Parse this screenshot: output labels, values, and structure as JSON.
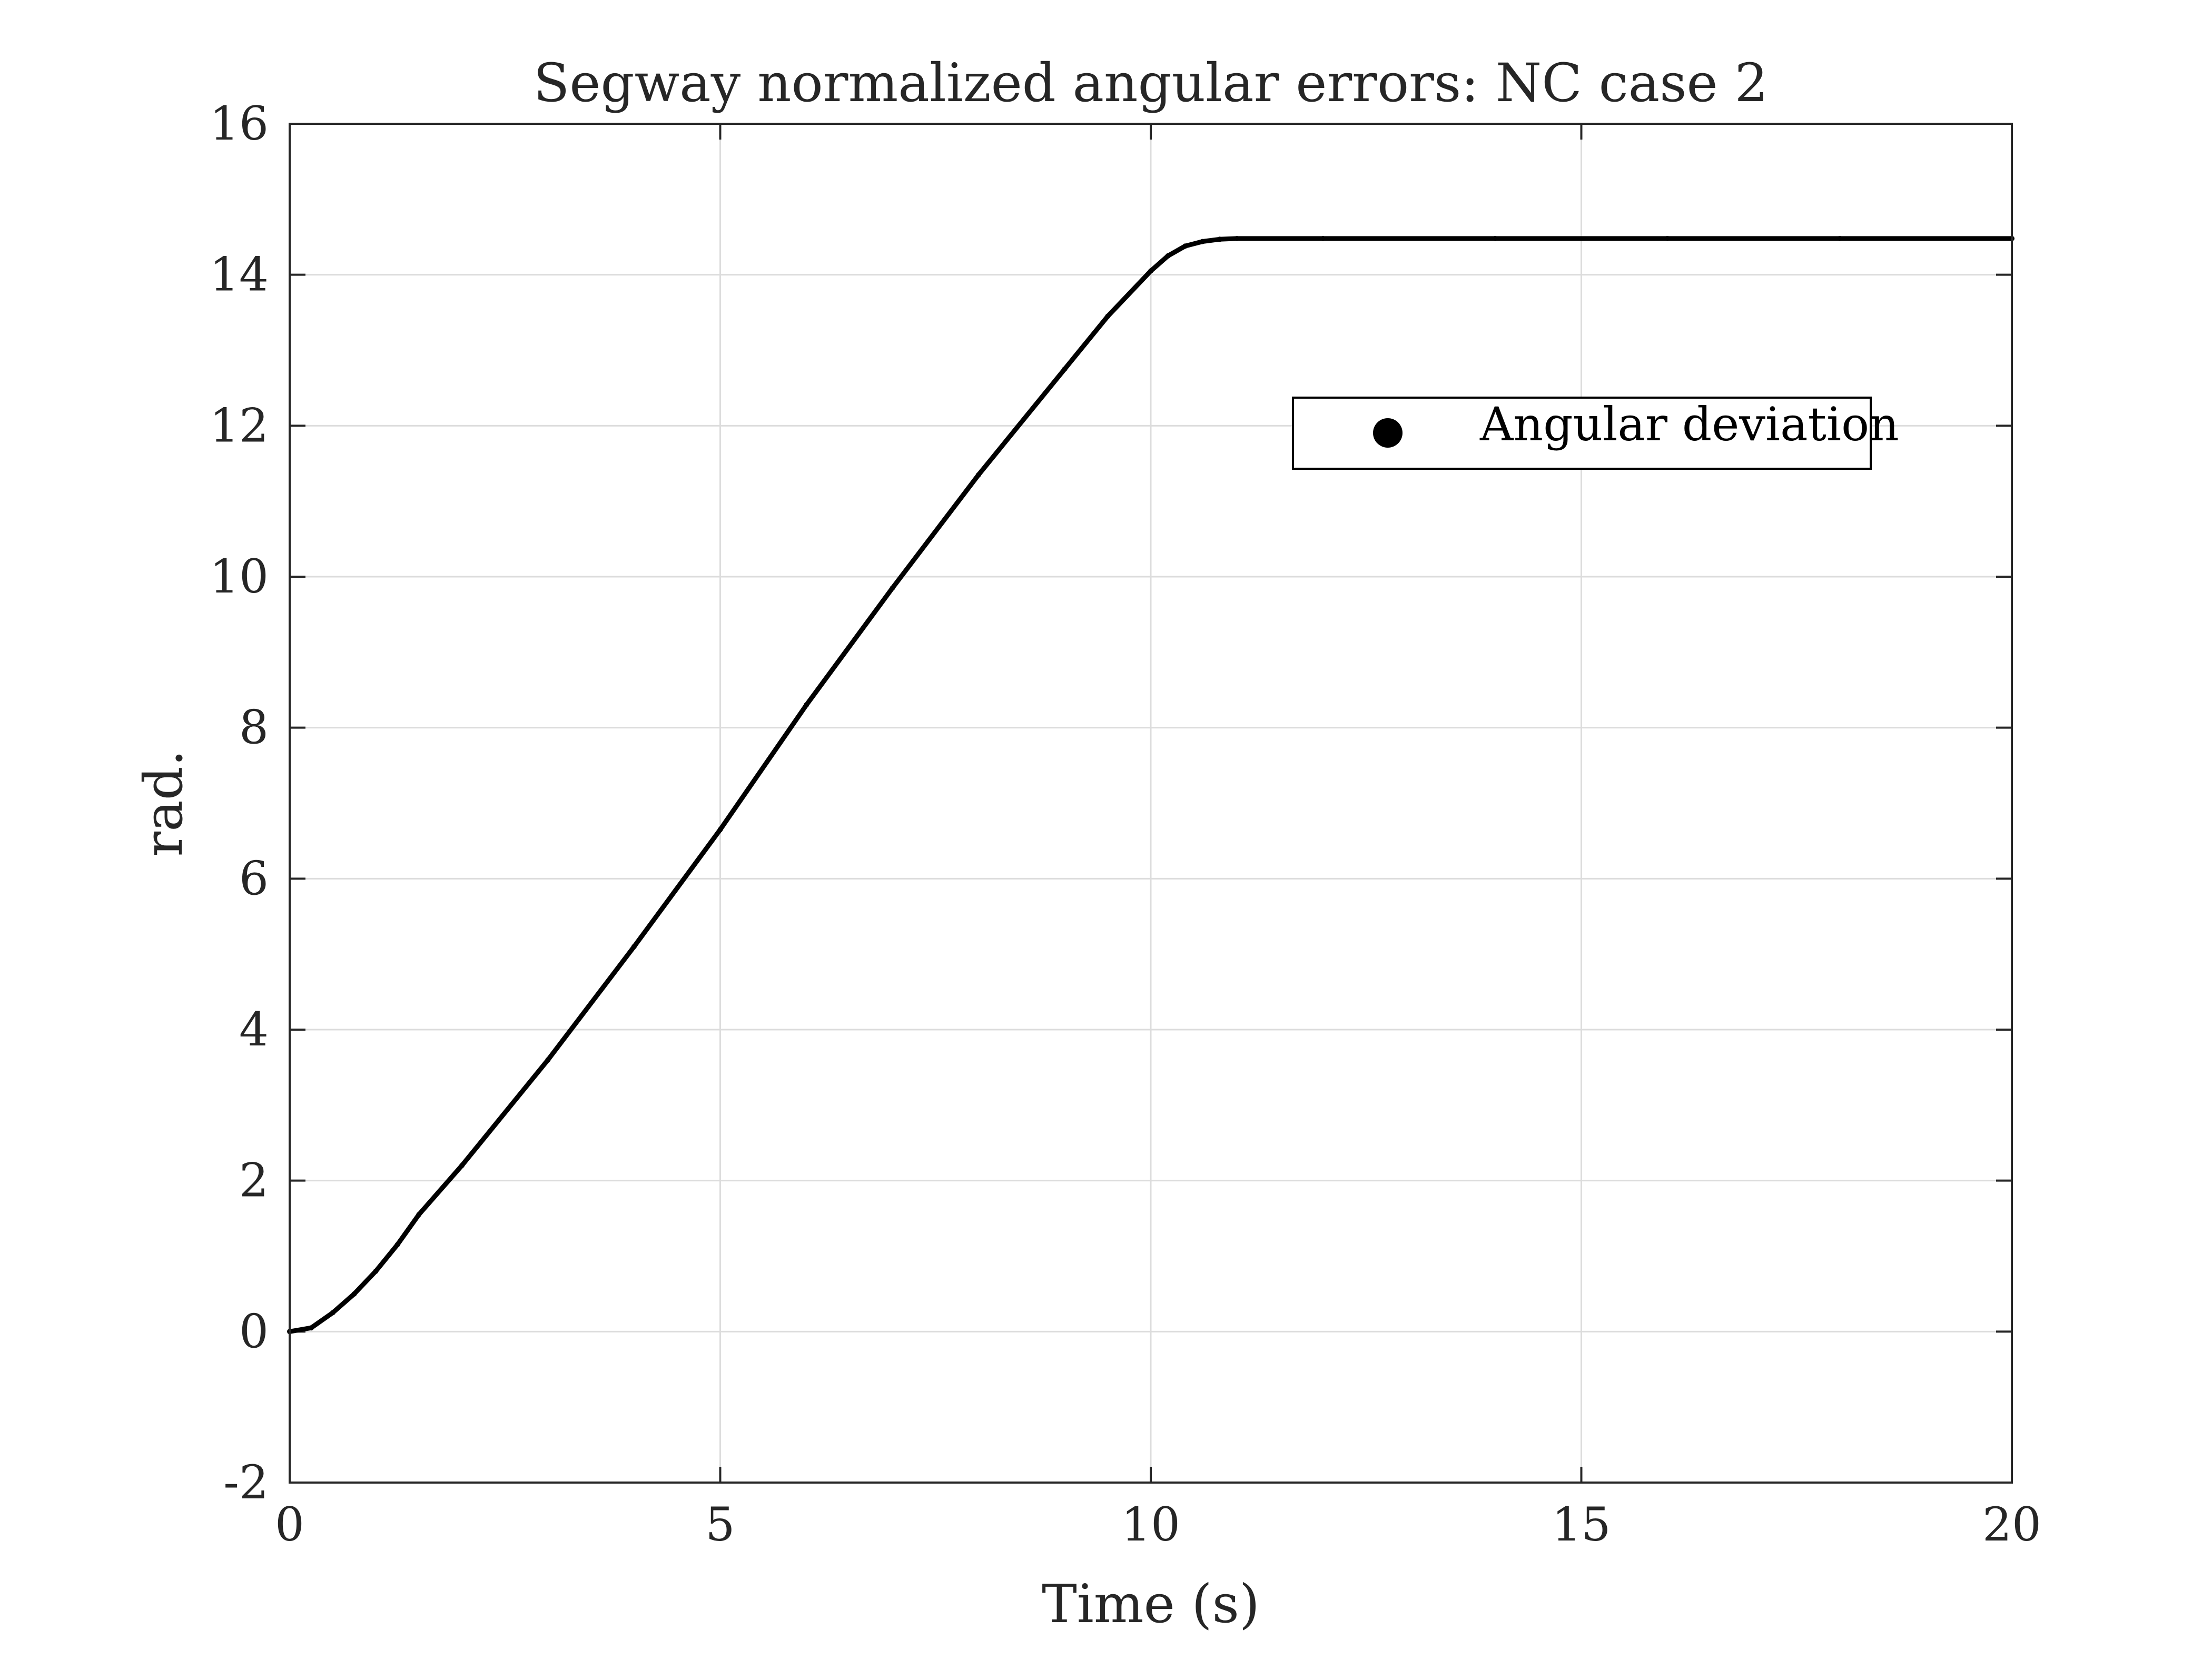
{
  "chart_data": {
    "type": "scatter",
    "title": "Segway normalized angular errors: NC case 2",
    "xlabel": "Time (s)",
    "ylabel": "rad.",
    "xlim": [
      0,
      20
    ],
    "ylim": [
      -2,
      16
    ],
    "xticks": [
      "0",
      "5",
      "10",
      "15",
      "20"
    ],
    "yticks": [
      "-2",
      "0",
      "2",
      "4",
      "6",
      "8",
      "10",
      "12",
      "14",
      "16"
    ],
    "grid": true,
    "legend_position": "top-right",
    "series": [
      {
        "name": "Angular deviation",
        "color": "#000000",
        "marker": "dot",
        "x": [
          0,
          0.25,
          0.5,
          0.75,
          1.0,
          1.25,
          1.5,
          2,
          3,
          4,
          5,
          6,
          7,
          8,
          9,
          9.5,
          10,
          10.2,
          10.4,
          10.6,
          10.8,
          11,
          12,
          14,
          16,
          18,
          20
        ],
        "y": [
          0,
          0.05,
          0.25,
          0.5,
          0.8,
          1.15,
          1.55,
          2.2,
          3.6,
          5.1,
          6.65,
          8.3,
          9.85,
          11.35,
          12.75,
          13.45,
          14.05,
          14.25,
          14.38,
          14.44,
          14.47,
          14.48,
          14.48,
          14.48,
          14.48,
          14.48,
          14.48
        ]
      }
    ]
  }
}
